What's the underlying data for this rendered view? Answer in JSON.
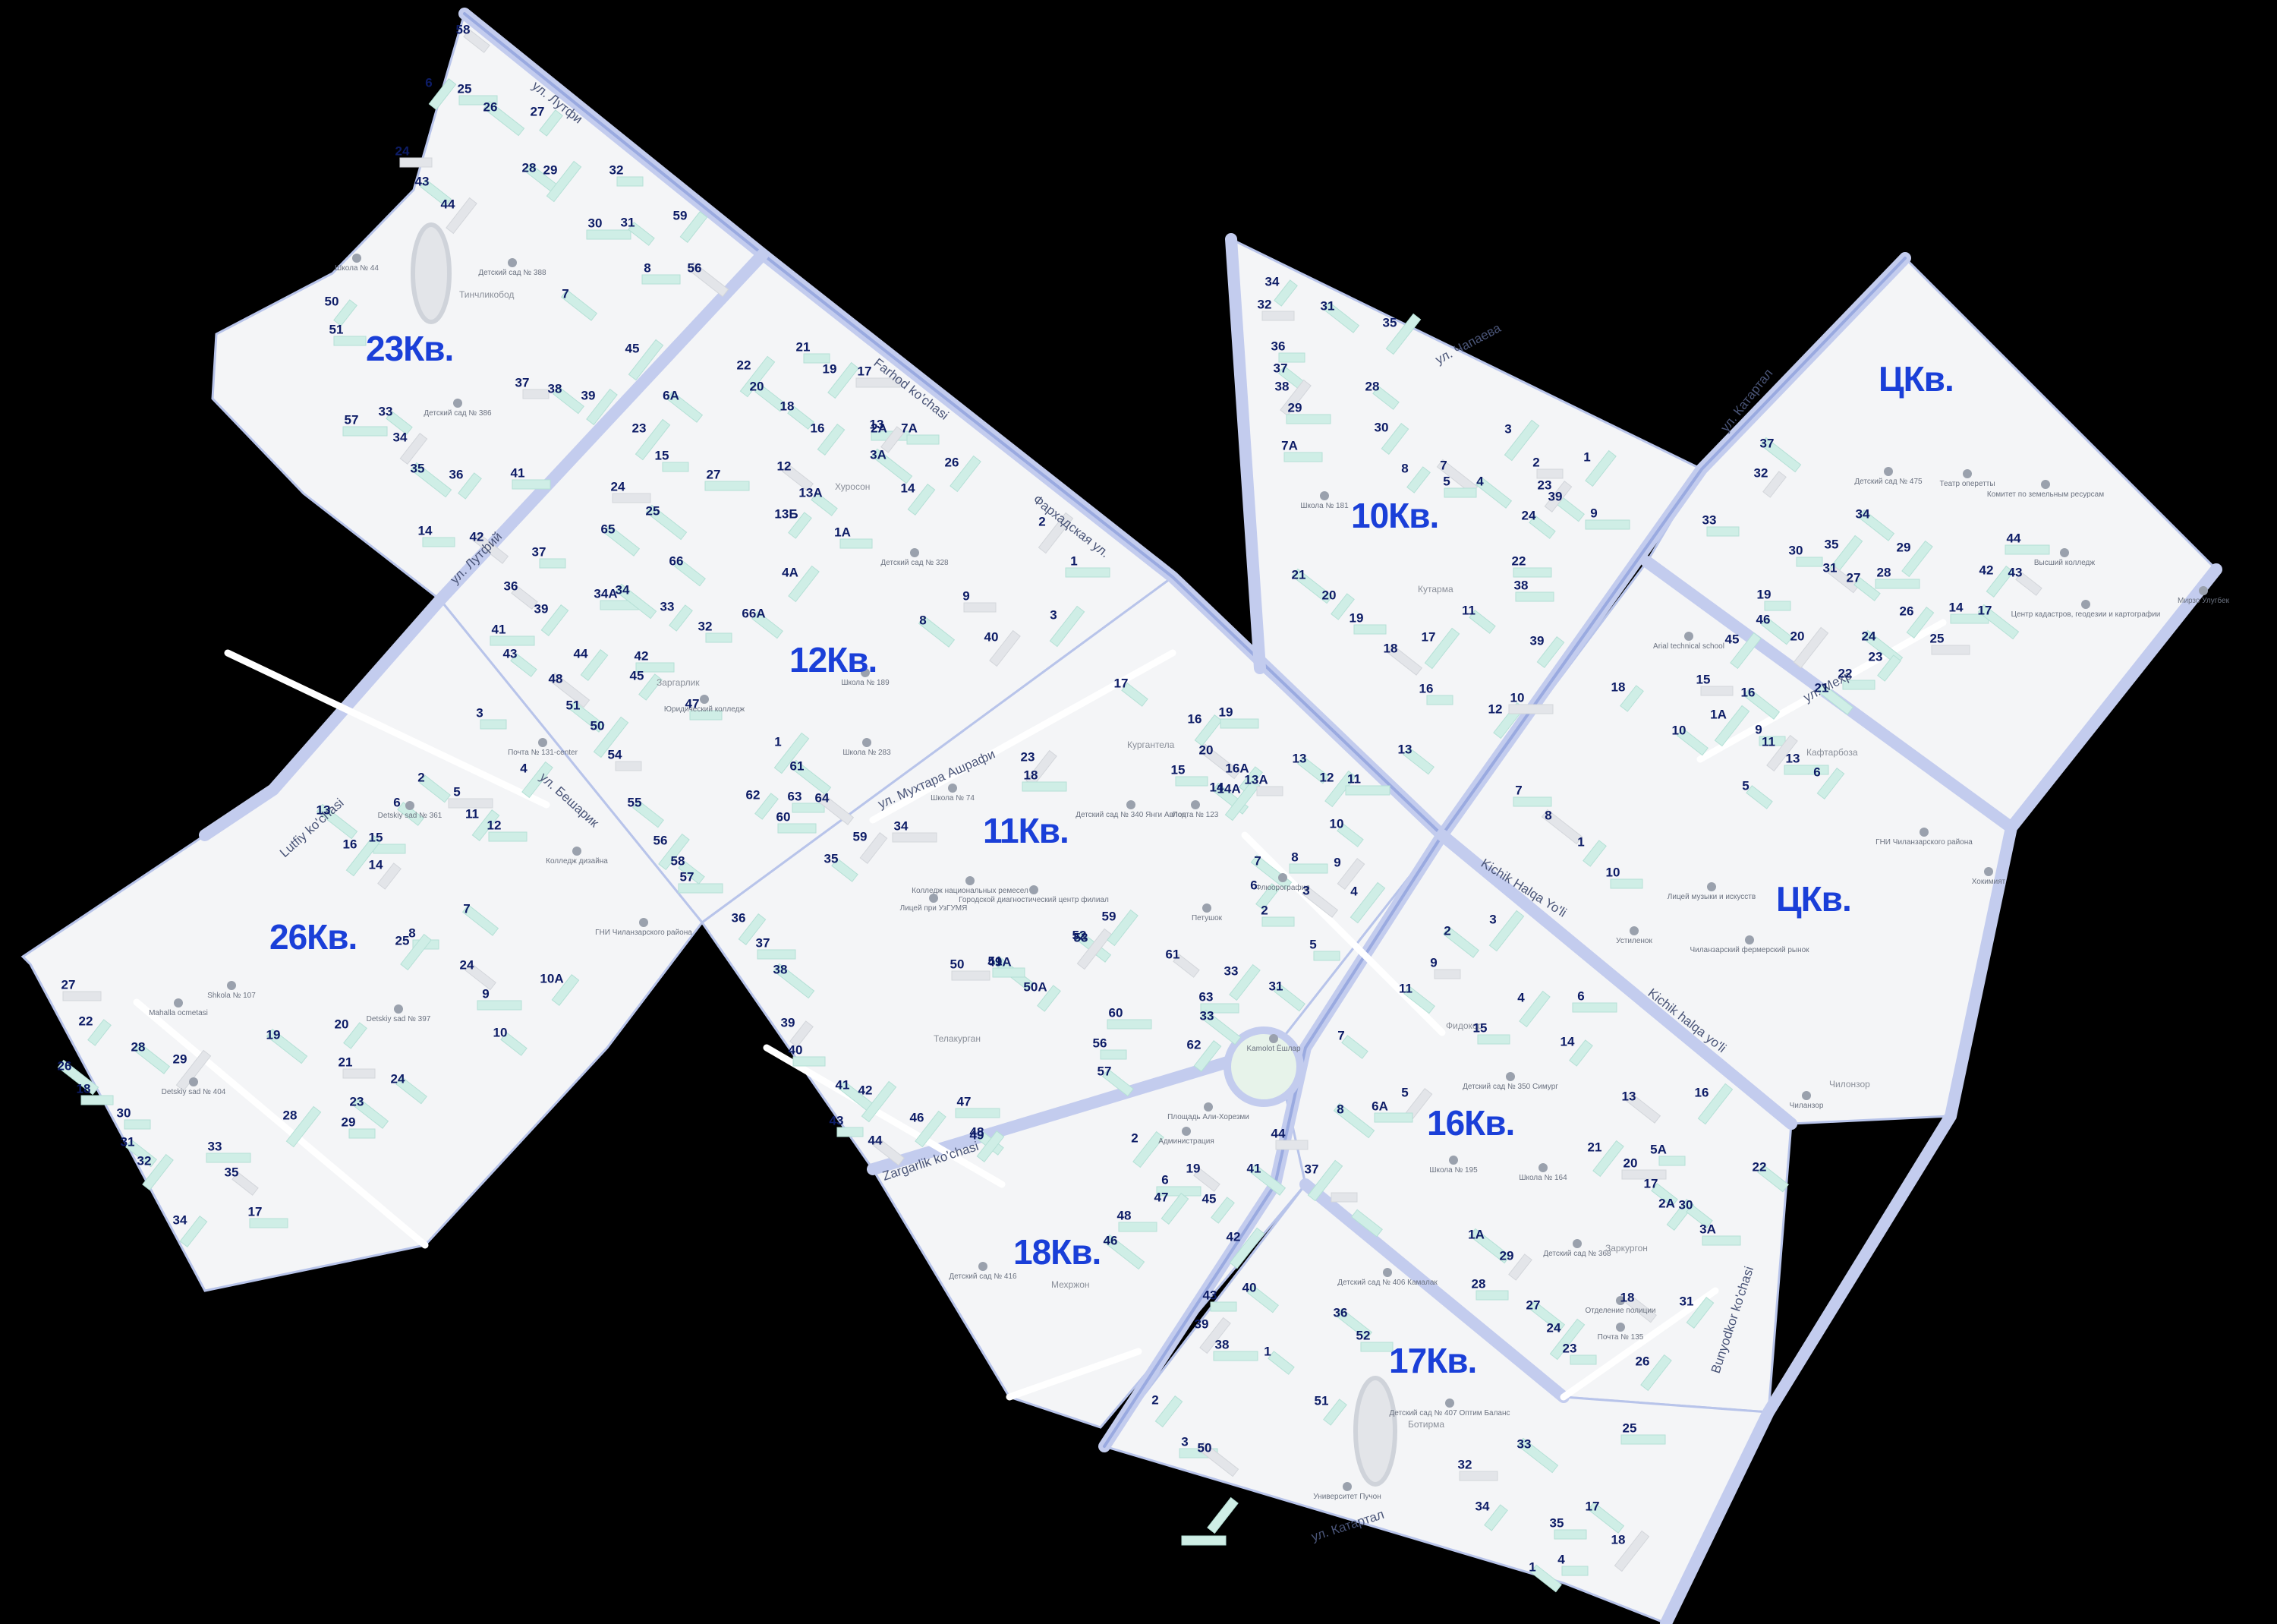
{
  "map": {
    "background_color": "#000000",
    "district_fill": "#f4f5f7",
    "quarter_label_color": "#1a3fd8",
    "house_number_color": "#0d1c66",
    "quarters": [
      {
        "id": "q23",
        "label": "23Кв."
      },
      {
        "id": "q12",
        "label": "12Кв."
      },
      {
        "id": "q26",
        "label": "26Кв."
      },
      {
        "id": "q11",
        "label": "11Кв."
      },
      {
        "id": "q10",
        "label": "10Кв."
      },
      {
        "id": "qc1",
        "label": "ЦКв."
      },
      {
        "id": "qc2",
        "label": "ЦКв."
      },
      {
        "id": "q16",
        "label": "16Кв."
      },
      {
        "id": "q18",
        "label": "18Кв."
      },
      {
        "id": "q17",
        "label": "17Кв."
      }
    ],
    "streets": [
      {
        "id": "s1",
        "label": "Farhod ko'chasi"
      },
      {
        "id": "s2",
        "label": "Фархадская ул."
      },
      {
        "id": "s3",
        "label": "ул. Мухтара Ашрафи"
      },
      {
        "id": "s4",
        "label": "Kichik Halqa Yo'li"
      },
      {
        "id": "s5",
        "label": "Kichik halqa yo'li"
      },
      {
        "id": "s6",
        "label": "Bunyodkor ko'chasi"
      },
      {
        "id": "s7",
        "label": "ул. Чапаева"
      },
      {
        "id": "s8",
        "label": "ул. Катартал"
      },
      {
        "id": "s9",
        "label": "ул. Мехр"
      },
      {
        "id": "s10",
        "label": "Zargarlik ko'chasi"
      },
      {
        "id": "s11",
        "label": "ул. Катартал"
      },
      {
        "id": "s12",
        "label": "ул. Лутфий"
      },
      {
        "id": "s13",
        "label": "Lutfiy ko'chasi"
      },
      {
        "id": "s14",
        "label": "ул. Бешарик"
      },
      {
        "id": "s15",
        "label": "ул. Лутфи"
      }
    ],
    "areas": [
      {
        "id": "a1",
        "label": "Тинчликобод"
      },
      {
        "id": "a2",
        "label": "Хуросон"
      },
      {
        "id": "a3",
        "label": "Заргарлик"
      },
      {
        "id": "a4",
        "label": "Кургантела"
      },
      {
        "id": "a5",
        "label": "Телакурган"
      },
      {
        "id": "a6",
        "label": "Кутарма"
      },
      {
        "id": "a7",
        "label": "Мехржон"
      },
      {
        "id": "a8",
        "label": "Заркургон"
      },
      {
        "id": "a9",
        "label": "Ботирма"
      },
      {
        "id": "a10",
        "label": "Фидокор"
      },
      {
        "id": "a11",
        "label": "Чилонзор"
      },
      {
        "id": "a12",
        "label": "Кафтарбоза"
      }
    ],
    "pois": [
      {
        "id": "p1",
        "label": "Школа № 44"
      },
      {
        "id": "p2",
        "label": "Детский сад № 388"
      },
      {
        "id": "p3",
        "label": "Детский сад № 386"
      },
      {
        "id": "p4",
        "label": "Детский сад № 328"
      },
      {
        "id": "p5",
        "label": "Школа № 189"
      },
      {
        "id": "p6",
        "label": "Юридический колледж"
      },
      {
        "id": "p7",
        "label": "Школа № 283"
      },
      {
        "id": "p8",
        "label": "Почта № 131-center"
      },
      {
        "id": "p9",
        "label": "Detskiy sad № 361"
      },
      {
        "id": "p10",
        "label": "Колледж дизайна"
      },
      {
        "id": "p11",
        "label": "ГНИ Чиланзарского района"
      },
      {
        "id": "p12",
        "label": "Shkola № 107"
      },
      {
        "id": "p13",
        "label": "Detskiy sad № 397"
      },
      {
        "id": "p14",
        "label": "Mahalla ocmetasi"
      },
      {
        "id": "p15",
        "label": "Detskiy sad № 404"
      },
      {
        "id": "p16",
        "label": "Школа № 74"
      },
      {
        "id": "p17",
        "label": "Детский сад № 340 Янги Авлод"
      },
      {
        "id": "p18",
        "label": "Почта № 123"
      },
      {
        "id": "p19",
        "label": "Колледж национальных ремесел"
      },
      {
        "id": "p20",
        "label": "Лицей при УзГУМЯ"
      },
      {
        "id": "p21",
        "label": "Городской диагностический центр филиал"
      },
      {
        "id": "p22",
        "label": "Флюорография"
      },
      {
        "id": "p23",
        "label": "Петушок"
      },
      {
        "id": "p24",
        "label": "Kamolot Ёшлар"
      },
      {
        "id": "p25",
        "label": "Площадь Али-Хорезми"
      },
      {
        "id": "p26",
        "label": "Администрация"
      },
      {
        "id": "p27",
        "label": "Школа № 181"
      },
      {
        "id": "p28",
        "label": "Arial technical school"
      },
      {
        "id": "p29",
        "label": "Лицей музыки и искусств"
      },
      {
        "id": "p30",
        "label": "Устиленок"
      },
      {
        "id": "p31",
        "label": "Чиланзарский фермерский рынок"
      },
      {
        "id": "p32",
        "label": "Детский сад № 475"
      },
      {
        "id": "p33",
        "label": "Театр оперетты"
      },
      {
        "id": "p34",
        "label": "Комитет по земельным ресурсам"
      },
      {
        "id": "p35",
        "label": "Высший колледж"
      },
      {
        "id": "p36",
        "label": "Центр кадастров, геодезии и картографии"
      },
      {
        "id": "p37",
        "label": "ГНИ Чиланзарского района"
      },
      {
        "id": "p38",
        "label": "Хокимият"
      },
      {
        "id": "p39",
        "label": "Мирзо Улугбек"
      },
      {
        "id": "p40",
        "label": "Детский сад № 350 Симург"
      },
      {
        "id": "p41",
        "label": "Школа № 195"
      },
      {
        "id": "p42",
        "label": "Школа № 164"
      },
      {
        "id": "p43",
        "label": "Детский сад № 368"
      },
      {
        "id": "p44",
        "label": "Отделение полиции"
      },
      {
        "id": "p45",
        "label": "Почта № 135"
      },
      {
        "id": "p46",
        "label": "Детский сад № 406 Камалак"
      },
      {
        "id": "p47",
        "label": "Детский сад № 407 Оптим Баланс"
      },
      {
        "id": "p48",
        "label": "Университет Пучон"
      },
      {
        "id": "p49",
        "label": "Детский сад № 416"
      },
      {
        "id": "p50",
        "label": "Чиланзор"
      }
    ],
    "house_numbers": [
      "58",
      "6",
      "25",
      "26",
      "27",
      "24",
      "28",
      "29",
      "32",
      "43",
      "44",
      "30",
      "31",
      "59",
      "8",
      "56",
      "50",
      "51",
      "7",
      "45",
      "37",
      "38",
      "39",
      "57",
      "33",
      "34",
      "41",
      "35",
      "36",
      "14",
      "42",
      "22",
      "21",
      "20",
      "19",
      "17",
      "18",
      "16",
      "13",
      "3А",
      "2А",
      "7А",
      "6А",
      "23",
      "15",
      "12",
      "26",
      "27",
      "13А",
      "14",
      "24",
      "25",
      "13Б",
      "1А",
      "65",
      "2",
      "37",
      "66",
      "4А",
      "1",
      "36",
      "39",
      "34А",
      "34",
      "33",
      "9",
      "8",
      "3",
      "32",
      "66А",
      "40",
      "41",
      "43",
      "44",
      "42",
      "48",
      "45",
      "47",
      "51",
      "50",
      "54",
      "55",
      "56",
      "57",
      "58",
      "59",
      "60",
      "61",
      "62",
      "63",
      "64",
      "1",
      "3",
      "2",
      "4",
      "5",
      "6",
      "11",
      "12",
      "13",
      "14",
      "15",
      "7",
      "16",
      "8",
      "24",
      "25",
      "9",
      "10",
      "10А",
      "27",
      "26",
      "22",
      "18",
      "28",
      "29",
      "30",
      "31",
      "32",
      "33",
      "35",
      "34",
      "17",
      "19",
      "20",
      "21",
      "23",
      "28",
      "29",
      "24",
      "23",
      "18",
      "17",
      "16",
      "19",
      "20",
      "16А",
      "15",
      "14",
      "14А",
      "13А",
      "13",
      "12",
      "11",
      "10",
      "9",
      "8",
      "7",
      "6",
      "2",
      "3",
      "4",
      "5",
      "31",
      "33",
      "34",
      "35",
      "36",
      "37",
      "38",
      "39",
      "40",
      "41",
      "42",
      "43",
      "44",
      "46",
      "47",
      "48",
      "49",
      "50",
      "49А",
      "50А",
      "51",
      "52",
      "53",
      "56",
      "57",
      "59",
      "60",
      "61",
      "62",
      "63",
      "33",
      "34",
      "32",
      "31",
      "35",
      "36",
      "37",
      "38",
      "29",
      "28",
      "30",
      "7А",
      "7",
      "8",
      "5",
      "4",
      "3",
      "2",
      "39",
      "1",
      "9",
      "24",
      "23",
      "22",
      "21",
      "20",
      "19",
      "18",
      "17",
      "16",
      "13",
      "12",
      "10",
      "11",
      "39",
      "38",
      "37",
      "32",
      "33",
      "34",
      "35",
      "30",
      "31",
      "29",
      "28",
      "27",
      "26",
      "25",
      "24",
      "23",
      "22",
      "21",
      "20",
      "19",
      "46",
      "45",
      "44",
      "43",
      "42",
      "14",
      "17",
      "18",
      "15",
      "16",
      "1А",
      "9",
      "10",
      "11",
      "13",
      "5",
      "6",
      "7",
      "8",
      "1",
      "10",
      "2",
      "3",
      "9",
      "11",
      "4",
      "6",
      "7",
      "5",
      "6А",
      "8",
      "14",
      "15",
      "13",
      "16",
      "5А",
      "22",
      "21",
      "20",
      "17",
      "2А",
      "3А",
      "1А",
      "29",
      "28",
      "27",
      "24",
      "23",
      "18",
      "26",
      "25",
      "30",
      "31",
      "32",
      "33",
      "34",
      "35",
      "17",
      "18",
      "4",
      "1",
      "2",
      "6",
      "19",
      "47",
      "48",
      "46",
      "45",
      "44",
      "41",
      "42",
      "43",
      "40",
      "39",
      "38",
      "1",
      "2",
      "3",
      "50",
      "51",
      "52",
      "36",
      "37"
    ]
  }
}
